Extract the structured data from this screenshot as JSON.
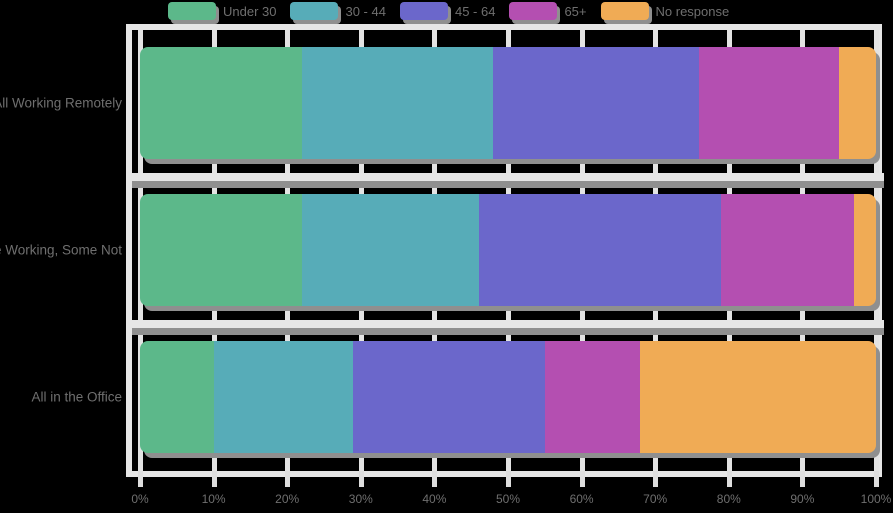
{
  "accent_colors": {
    "grid": "#e6e6e6",
    "shadow": "#8f8f8f",
    "text": "#6f6f6f",
    "background": "#000000"
  },
  "chart_data": {
    "type": "bar",
    "orientation": "horizontal-stacked",
    "title": "",
    "xlabel": "",
    "ylabel": "",
    "xlim": [
      0,
      100
    ],
    "grid": "on",
    "legend_position": "top",
    "categories": [
      "All Working Remotely",
      "Some Working, Some Not",
      "All in the Office"
    ],
    "series": [
      {
        "name": "Under 30",
        "color": "#5cb88a",
        "values": [
          22,
          22,
          10
        ]
      },
      {
        "name": "30 - 44",
        "color": "#57acb8",
        "values": [
          26,
          24,
          19
        ]
      },
      {
        "name": "45 - 64",
        "color": "#6b67cb",
        "values": [
          28,
          33,
          26
        ]
      },
      {
        "name": "65+",
        "color": "#b44fb1",
        "values": [
          19,
          18,
          13
        ]
      },
      {
        "name": "No response",
        "color": "#f0ab55",
        "values": [
          5,
          3,
          32
        ]
      }
    ],
    "x_tick_labels": [
      "0%",
      "10%",
      "20%",
      "30%",
      "40%",
      "50%",
      "60%",
      "70%",
      "80%",
      "90%",
      "100%"
    ]
  }
}
